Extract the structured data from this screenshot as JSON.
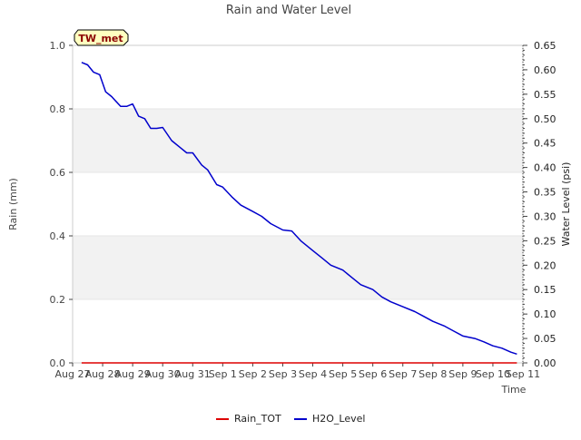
{
  "chart_data": {
    "type": "line",
    "title": "Rain and Water Level",
    "station_label": "TW_met",
    "xlabel": "Time",
    "ylabel_left": "Rain (mm)",
    "ylabel_right": "Water Level (psi)",
    "x_ticks": [
      "Aug 27",
      "Aug 28",
      "Aug 29",
      "Aug 30",
      "Aug 31",
      "Sep 1",
      "Sep 2",
      "Sep 3",
      "Sep 4",
      "Sep 5",
      "Sep 6",
      "Sep 7",
      "Sep 8",
      "Sep 9",
      "Sep 10",
      "Sep 11"
    ],
    "xlim": [
      0,
      15
    ],
    "y_left_ticks": [
      "0.0",
      "0.2",
      "0.4",
      "0.6",
      "0.8",
      "1.0"
    ],
    "y_left_lim": [
      0,
      1.0
    ],
    "y_right_ticks": [
      "0.00",
      "0.05",
      "0.10",
      "0.15",
      "0.20",
      "0.25",
      "0.30",
      "0.35",
      "0.40",
      "0.45",
      "0.50",
      "0.55",
      "0.60",
      "0.65"
    ],
    "y_right_lim": [
      0,
      0.65
    ],
    "grid": "horizontal bands",
    "legend_position": "bottom-center",
    "series": [
      {
        "name": "Rain_TOT",
        "axis": "left",
        "color": "#dd0000",
        "x": [
          0.3,
          14.8
        ],
        "values": [
          0,
          0
        ]
      },
      {
        "name": "H2O_Level",
        "axis": "right",
        "color": "#0000cc",
        "x": [
          0.3,
          0.5,
          0.7,
          0.9,
          1.1,
          1.3,
          1.6,
          1.8,
          2.0,
          2.2,
          2.4,
          2.6,
          2.8,
          3.0,
          3.3,
          3.6,
          3.8,
          4.0,
          4.3,
          4.5,
          4.8,
          5.0,
          5.3,
          5.6,
          6.0,
          6.3,
          6.6,
          7.0,
          7.3,
          7.6,
          8.0,
          8.3,
          8.6,
          9.0,
          9.3,
          9.6,
          10.0,
          10.3,
          10.6,
          11.0,
          11.4,
          11.7,
          12.0,
          12.4,
          12.7,
          13.0,
          13.4,
          13.7,
          14.0,
          14.3,
          14.6,
          14.8
        ],
        "values": [
          0.615,
          0.61,
          0.595,
          0.59,
          0.555,
          0.545,
          0.525,
          0.525,
          0.53,
          0.505,
          0.5,
          0.48,
          0.48,
          0.482,
          0.455,
          0.44,
          0.43,
          0.43,
          0.405,
          0.395,
          0.365,
          0.36,
          0.34,
          0.323,
          0.31,
          0.3,
          0.285,
          0.272,
          0.27,
          0.25,
          0.23,
          0.215,
          0.2,
          0.19,
          0.175,
          0.16,
          0.15,
          0.135,
          0.125,
          0.115,
          0.105,
          0.095,
          0.085,
          0.075,
          0.065,
          0.055,
          0.05,
          0.043,
          0.035,
          0.03,
          0.022,
          0.018
        ]
      }
    ]
  }
}
